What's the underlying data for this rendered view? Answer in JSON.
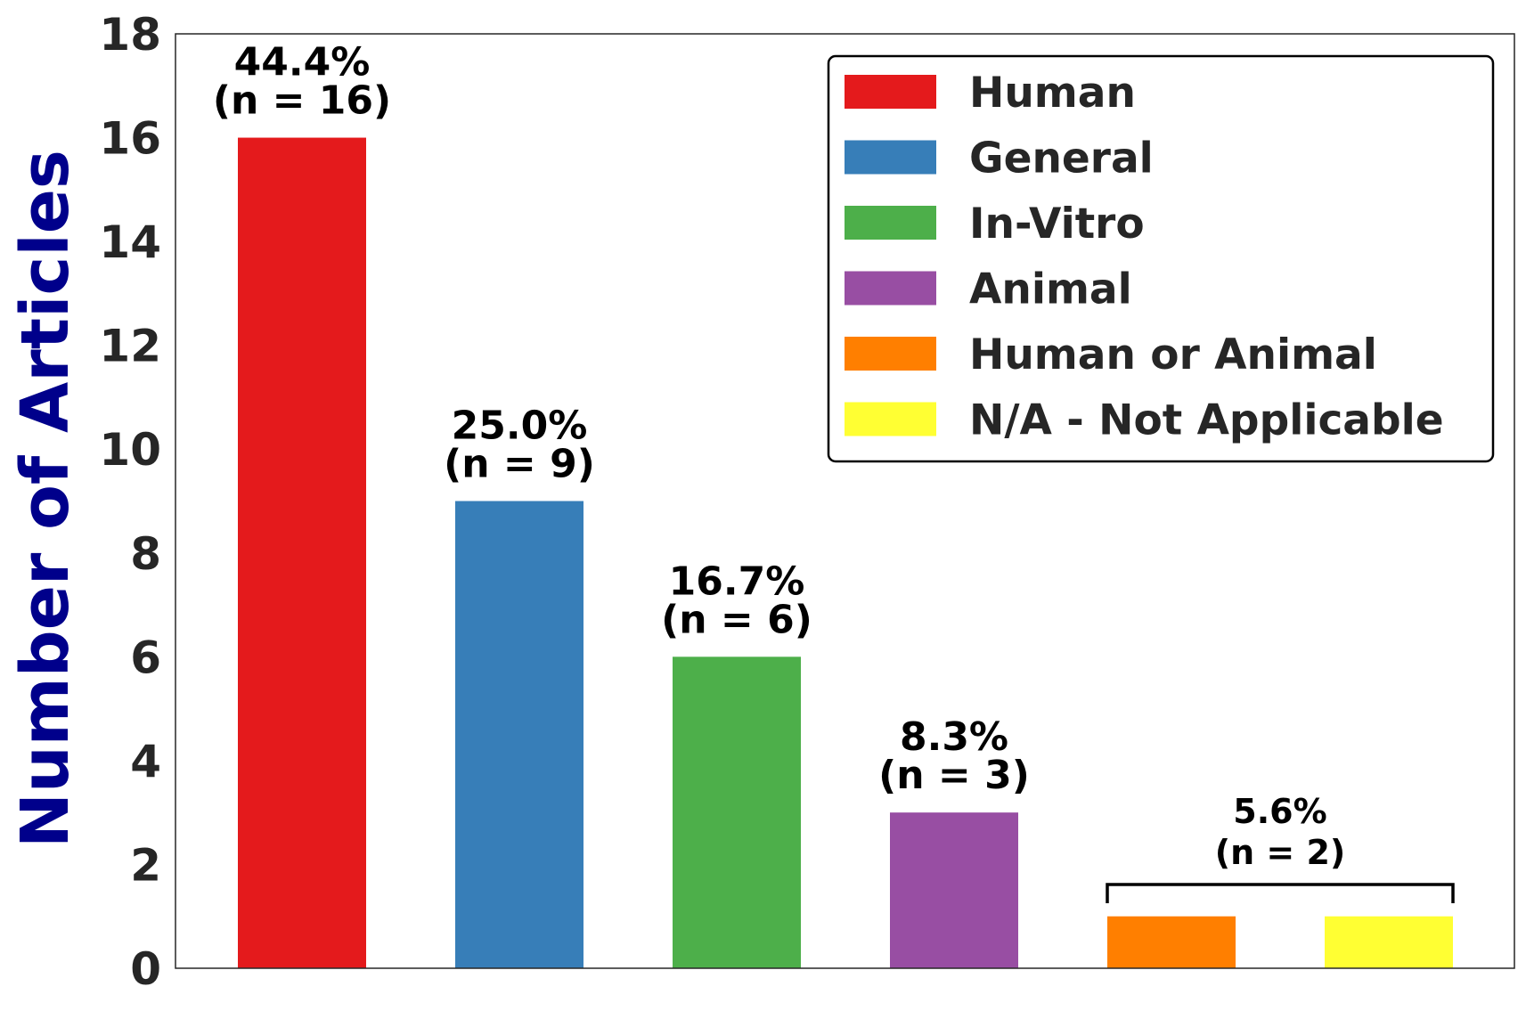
{
  "chart_data": {
    "type": "bar",
    "categories": [
      "Human",
      "General",
      "In-Vitro",
      "Animal",
      "Human or Animal",
      "N/A - Not Applicable"
    ],
    "values": [
      16,
      9,
      6,
      3,
      1,
      1
    ],
    "colors": [
      "#e41a1c",
      "#377eb8",
      "#4daf4a",
      "#984ea3",
      "#ff7f00",
      "#ffff33"
    ],
    "bar_labels": [
      {
        "pct": "44.4%",
        "n": "(n = 16)"
      },
      {
        "pct": "25.0%",
        "n": "(n = 9)"
      },
      {
        "pct": "16.7%",
        "n": "(n = 6)"
      },
      {
        "pct": "8.3%",
        "n": "(n = 3)"
      }
    ],
    "group_label": {
      "pct": "5.6%",
      "n": "(n = 2)",
      "categories": [
        4,
        5
      ]
    },
    "ylabel": "Number of Articles",
    "xlabel": "",
    "ylim": [
      0,
      18
    ],
    "yticks": [
      0,
      2,
      4,
      6,
      8,
      10,
      12,
      14,
      16,
      18
    ],
    "grid": false,
    "legend": {
      "position": "top-right",
      "entries": [
        "Human",
        "General",
        "In-Vitro",
        "Animal",
        "Human or Animal",
        "N/A - Not Applicable"
      ]
    }
  }
}
